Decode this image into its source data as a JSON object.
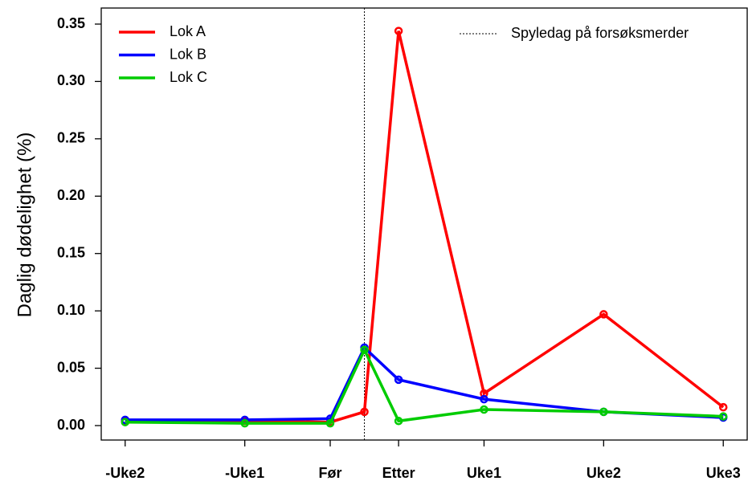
{
  "chart_data": {
    "type": "line",
    "y_label": "Daglig dødelighet (%)",
    "x": [
      -14,
      -7,
      -2,
      0,
      2,
      7,
      14,
      21
    ],
    "series": [
      {
        "name": "Lok A",
        "color": "#ff0000",
        "values": [
          0.004,
          0.004,
          0.003,
          0.012,
          0.344,
          0.028,
          0.097,
          0.016
        ]
      },
      {
        "name": "Lok B",
        "color": "#0000ff",
        "values": [
          0.005,
          0.005,
          0.006,
          0.068,
          0.04,
          0.023,
          0.012,
          0.007
        ]
      },
      {
        "name": "Lok C",
        "color": "#00cc00",
        "values": [
          0.003,
          0.002,
          0.002,
          0.066,
          0.004,
          0.014,
          0.012,
          0.008
        ]
      }
    ],
    "vline": {
      "x": 0,
      "label": "Spyledag på forsøksmerder"
    },
    "xlim": [
      -15.4,
      22.4
    ],
    "xticks": [
      {
        "value": -14,
        "label": "-Uke2"
      },
      {
        "value": -7,
        "label": "-Uke1"
      },
      {
        "value": -2,
        "label": "Før"
      },
      {
        "value": 2,
        "label": "Etter"
      },
      {
        "value": 7,
        "label": "Uke1"
      },
      {
        "value": 14,
        "label": "Uke2"
      },
      {
        "value": 21,
        "label": "Uke3"
      }
    ],
    "ylim": [
      -0.0126,
      0.364
    ],
    "yticks": [
      {
        "value": 0,
        "label": "0.00"
      },
      0.05,
      {
        "value": 0.1,
        "label": "0.10"
      },
      0.15,
      {
        "value": 0.2,
        "label": "0.20"
      },
      0.25,
      {
        "value": 0.3,
        "label": "0.30"
      },
      0.35
    ]
  }
}
